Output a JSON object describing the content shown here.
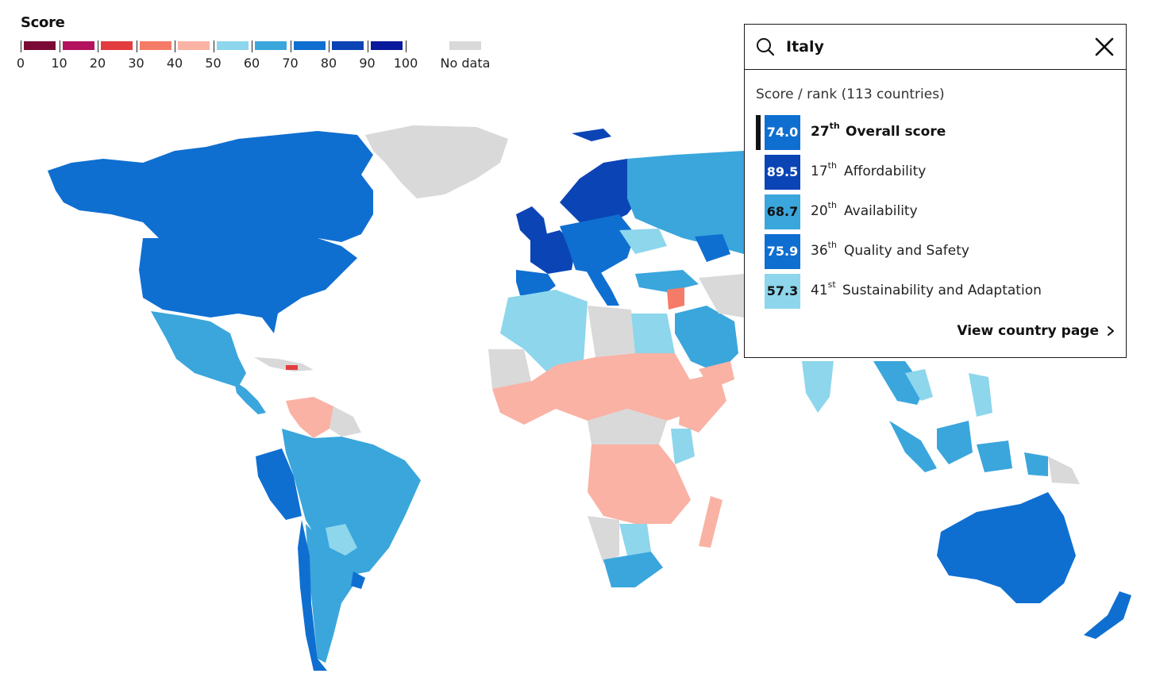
{
  "legend": {
    "title": "Score",
    "scale": [
      {
        "from": "0",
        "color": "#7a0a35"
      },
      {
        "from": "10",
        "color": "#b3135e"
      },
      {
        "from": "20",
        "color": "#e33c3f"
      },
      {
        "from": "30",
        "color": "#f47b67"
      },
      {
        "from": "40",
        "color": "#f9b2a4"
      },
      {
        "from": "50",
        "color": "#8dd6ec"
      },
      {
        "from": "60",
        "color": "#3aa6dc"
      },
      {
        "from": "70",
        "color": "#0f6fd1"
      },
      {
        "from": "80",
        "color": "#0b44b5"
      },
      {
        "from": "90",
        "color": "#0a1a9c"
      }
    ],
    "tick_labels": [
      "0",
      "10",
      "20",
      "30",
      "40",
      "50",
      "60",
      "70",
      "80",
      "90",
      "100"
    ],
    "no_data_label": "No data",
    "no_data_color": "#d9d9d9"
  },
  "panel": {
    "search_value": "Italy",
    "heading": "Score / rank (113 countries)",
    "rows": [
      {
        "score": "74.0",
        "rank": "27",
        "suffix": "th",
        "label": "Overall score",
        "bold": true,
        "color": "#0f6fd1",
        "text_color": "#ffffff"
      },
      {
        "score": "89.5",
        "rank": "17",
        "suffix": "th",
        "label": "Affordability",
        "bold": false,
        "color": "#0b44b5",
        "text_color": "#ffffff"
      },
      {
        "score": "68.7",
        "rank": "20",
        "suffix": "th",
        "label": "Availability",
        "bold": false,
        "color": "#3aa6dc",
        "text_color": "#121212"
      },
      {
        "score": "75.9",
        "rank": "36",
        "suffix": "th",
        "label": "Quality and Safety",
        "bold": false,
        "color": "#0f6fd1",
        "text_color": "#ffffff"
      },
      {
        "score": "57.3",
        "rank": "41",
        "suffix": "st",
        "label": "Sustainability and Adaptation",
        "bold": false,
        "color": "#8dd6ec",
        "text_color": "#121212"
      }
    ],
    "link_label": "View country page"
  },
  "map_colors": {
    "ocean": "#ffffff",
    "border": "#ffffff"
  }
}
